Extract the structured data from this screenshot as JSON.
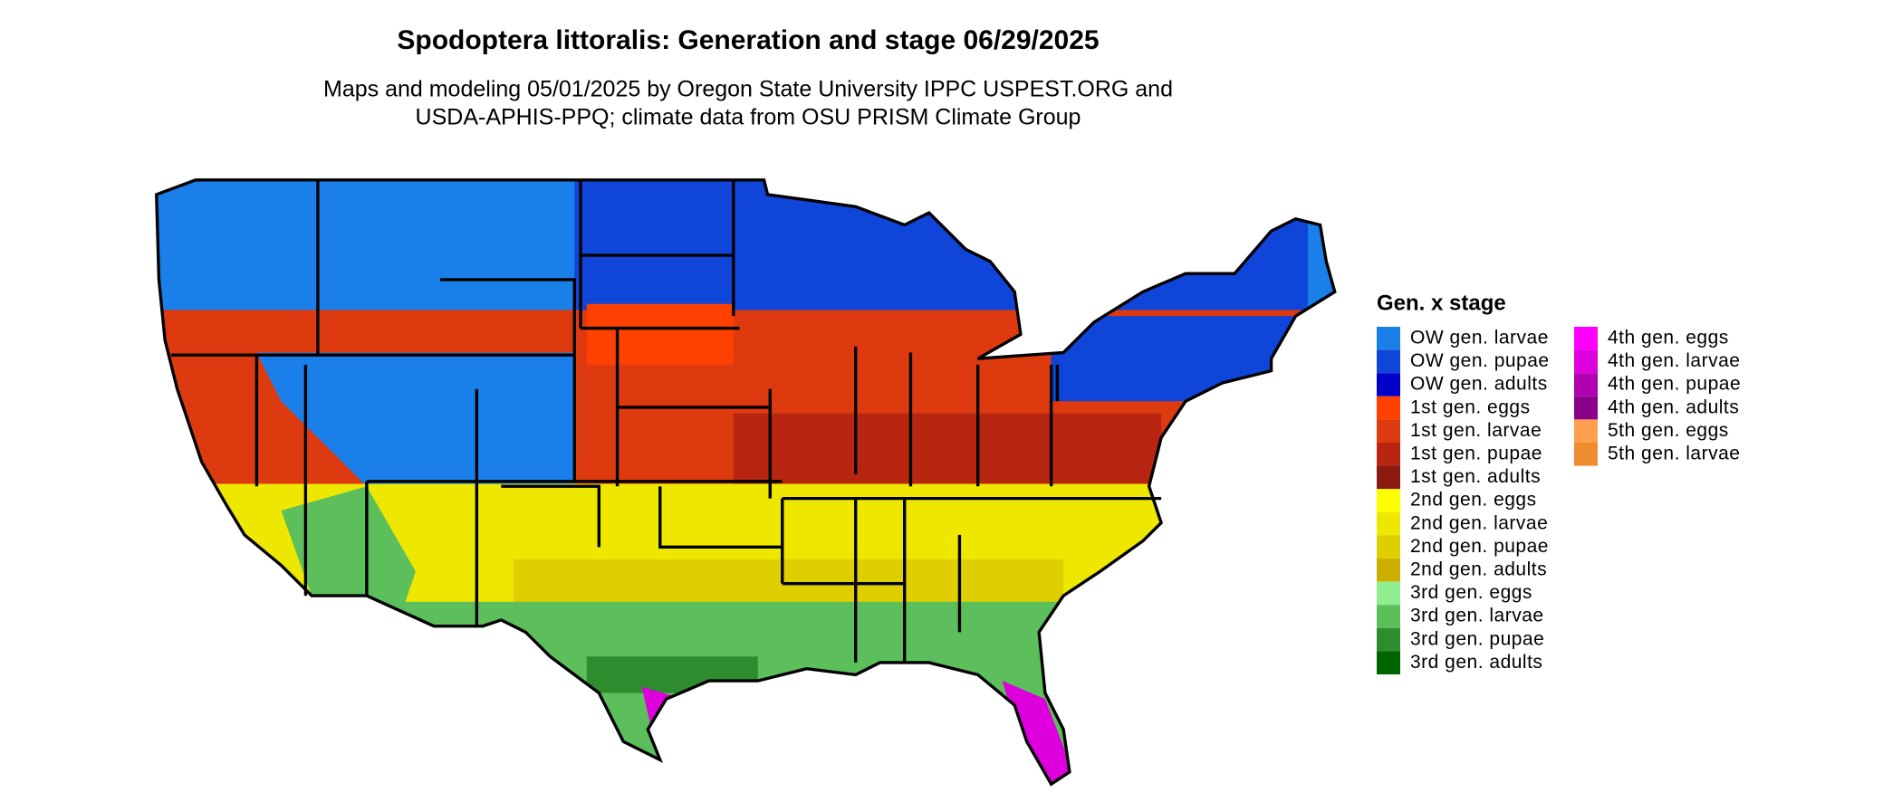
{
  "title": "Spodoptera littoralis: Generation and stage 06/29/2025",
  "subtitle": [
    "Maps and modeling 05/01/2025 by Oregon State University IPPC USPEST.ORG and",
    "USDA-APHIS-PPQ; climate data from OSU PRISM Climate Group"
  ],
  "legend": {
    "title": "Gen. x stage",
    "items": [
      {
        "label": "OW gen. larvae",
        "color": "#1a7fe8"
      },
      {
        "label": "OW gen. pupae",
        "color": "#0f45d8"
      },
      {
        "label": "OW gen. adults",
        "color": "#0000c8"
      },
      {
        "label": "1st gen. eggs",
        "color": "#ff4000"
      },
      {
        "label": "1st gen. larvae",
        "color": "#dd3a10"
      },
      {
        "label": "1st gen. pupae",
        "color": "#b82510"
      },
      {
        "label": "1st gen. adults",
        "color": "#8b1a10"
      },
      {
        "label": "2nd gen. eggs",
        "color": "#ffff00"
      },
      {
        "label": "2nd gen. larvae",
        "color": "#eee800"
      },
      {
        "label": "2nd gen. pupae",
        "color": "#e0cf00"
      },
      {
        "label": "2nd gen. adults",
        "color": "#ccad00"
      },
      {
        "label": "3rd gen. eggs",
        "color": "#90ee90"
      },
      {
        "label": "3rd gen. larvae",
        "color": "#5cbf5c"
      },
      {
        "label": "3rd gen. pupae",
        "color": "#2e8b2e"
      },
      {
        "label": "3rd gen. adults",
        "color": "#006400"
      },
      {
        "label": "4th gen. eggs",
        "color": "#ff00ff"
      },
      {
        "label": "4th gen. larvae",
        "color": "#dd00dd"
      },
      {
        "label": "4th gen. pupae",
        "color": "#b000b0"
      },
      {
        "label": "4th gen. adults",
        "color": "#8b008b"
      },
      {
        "label": "5th gen. eggs",
        "color": "#ffa050"
      },
      {
        "label": "5th gen. larvae",
        "color": "#f08c30"
      }
    ]
  }
}
